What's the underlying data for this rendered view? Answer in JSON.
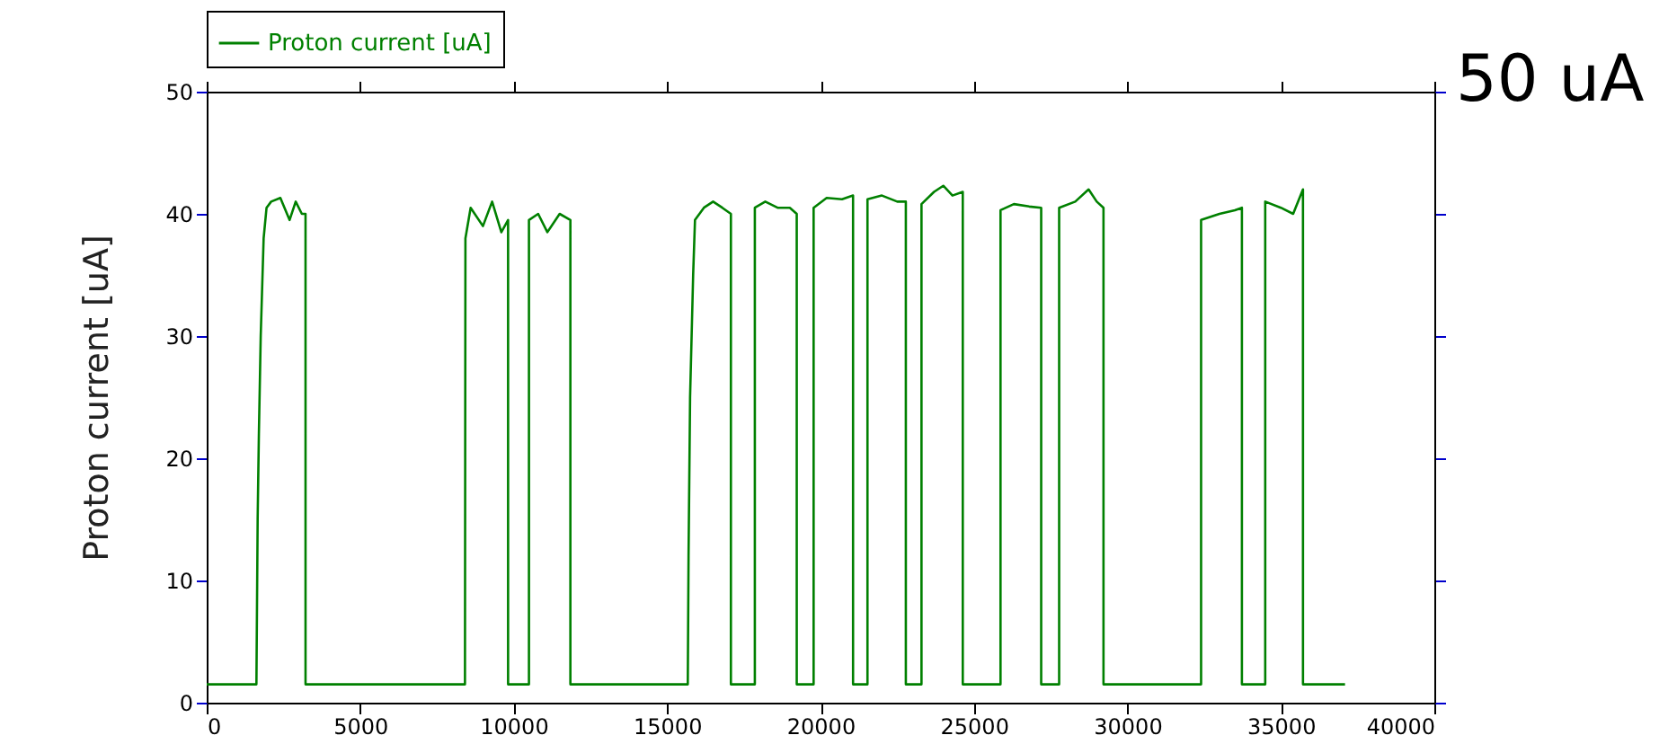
{
  "chart_data": {
    "type": "line",
    "ylabel": "Proton current [uA]",
    "annotations": [
      "50 uA"
    ],
    "xlim": [
      0,
      40000
    ],
    "xticks": [
      0,
      5000,
      10000,
      15000,
      20000,
      25000,
      30000,
      35000,
      40000
    ],
    "ylim": [
      0,
      50
    ],
    "yticks": [
      0,
      10,
      20,
      30,
      40,
      50
    ],
    "grid": false,
    "legend": "top left",
    "marker": "none",
    "line_style": "solid",
    "series": [
      {
        "name": "Proton current [uA]",
        "color": "#008000",
        "x": [
          0,
          1620,
          1660,
          1700,
          1760,
          1855,
          1950,
          2100,
          2400,
          2700,
          2900,
          3100,
          3220,
          3220,
          8415,
          8430,
          8600,
          9000,
          9300,
          9600,
          9820,
          9820,
          10500,
          10500,
          10800,
          11100,
          11500,
          11850,
          11850,
          15675,
          15700,
          15750,
          15850,
          15910,
          16200,
          16500,
          16800,
          17080,
          17080,
          17860,
          17860,
          18200,
          18600,
          19000,
          19225,
          19225,
          19775,
          19775,
          20200,
          20700,
          21060,
          21060,
          21530,
          21530,
          22000,
          22500,
          22780,
          22780,
          23290,
          23290,
          23700,
          24000,
          24300,
          24635,
          24635,
          25865,
          25865,
          26300,
          26800,
          27190,
          27190,
          27775,
          27775,
          28300,
          28735,
          29000,
          29220,
          29220,
          32400,
          32400,
          33000,
          33500,
          33730,
          33730,
          34490,
          34490,
          35000,
          35400,
          35720,
          35720,
          37090
        ],
        "values": [
          1.5,
          1.5,
          15,
          22,
          30,
          38,
          40.5,
          41,
          41.3,
          39.5,
          41,
          40,
          40,
          1.5,
          1.5,
          38,
          40.5,
          39,
          41,
          38.5,
          39.5,
          1.5,
          1.5,
          39.5,
          40,
          38.5,
          40,
          39.5,
          1.5,
          1.5,
          12,
          25,
          35,
          39.5,
          40.5,
          41,
          40.5,
          40,
          1.5,
          1.5,
          40.5,
          41,
          40.5,
          40.5,
          40,
          1.5,
          1.5,
          40.5,
          41.3,
          41.2,
          41.5,
          1.5,
          1.5,
          41.2,
          41.5,
          41,
          41,
          1.5,
          1.5,
          40.8,
          41.8,
          42.3,
          41.5,
          41.8,
          1.5,
          1.5,
          40.3,
          40.8,
          40.6,
          40.5,
          1.5,
          1.5,
          40.5,
          41,
          42,
          41,
          40.5,
          1.5,
          1.5,
          39.5,
          40,
          40.3,
          40.5,
          1.5,
          1.5,
          41,
          40.5,
          40,
          42,
          1.5,
          1.5
        ]
      }
    ]
  }
}
